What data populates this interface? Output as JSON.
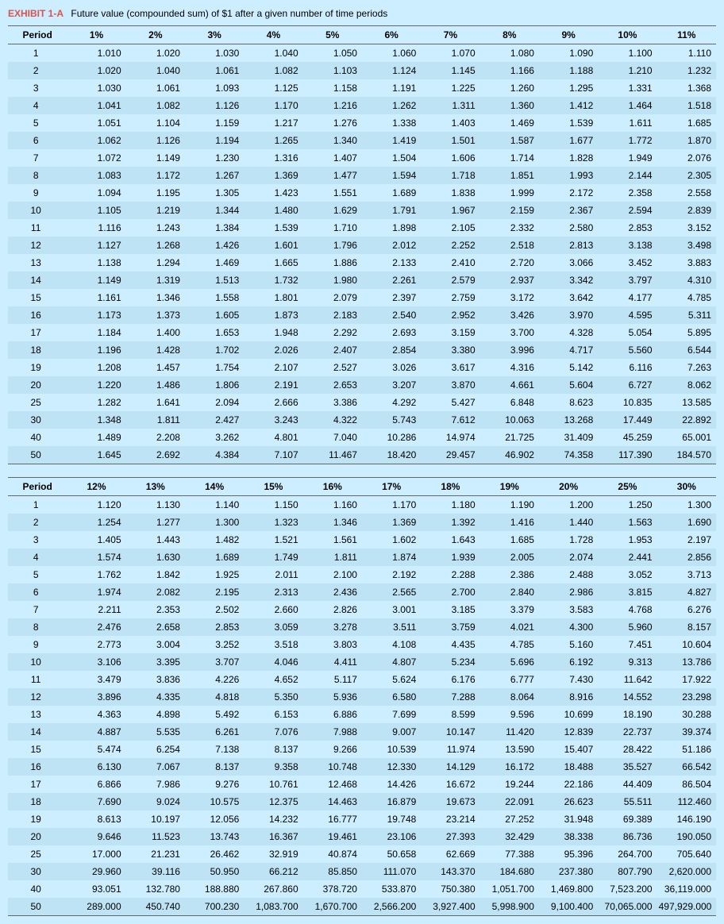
{
  "title": {
    "label": "EXHIBIT 1-A",
    "text": "Future value (compounded sum) of $1 after a given number of time periods"
  },
  "tableA": {
    "headers": [
      "Period",
      "1%",
      "2%",
      "3%",
      "4%",
      "5%",
      "6%",
      "7%",
      "8%",
      "9%",
      "10%",
      "11%"
    ],
    "rows": [
      [
        "1",
        "1.010",
        "1.020",
        "1.030",
        "1.040",
        "1.050",
        "1.060",
        "1.070",
        "1.080",
        "1.090",
        "1.100",
        "1.110"
      ],
      [
        "2",
        "1.020",
        "1.040",
        "1.061",
        "1.082",
        "1.103",
        "1.124",
        "1.145",
        "1.166",
        "1.188",
        "1.210",
        "1.232"
      ],
      [
        "3",
        "1.030",
        "1.061",
        "1.093",
        "1.125",
        "1.158",
        "1.191",
        "1.225",
        "1.260",
        "1.295",
        "1.331",
        "1.368"
      ],
      [
        "4",
        "1.041",
        "1.082",
        "1.126",
        "1.170",
        "1.216",
        "1.262",
        "1.311",
        "1.360",
        "1.412",
        "1.464",
        "1.518"
      ],
      [
        "5",
        "1.051",
        "1.104",
        "1.159",
        "1.217",
        "1.276",
        "1.338",
        "1.403",
        "1.469",
        "1.539",
        "1.611",
        "1.685"
      ],
      [
        "6",
        "1.062",
        "1.126",
        "1.194",
        "1.265",
        "1.340",
        "1.419",
        "1.501",
        "1.587",
        "1.677",
        "1.772",
        "1.870"
      ],
      [
        "7",
        "1.072",
        "1.149",
        "1.230",
        "1.316",
        "1.407",
        "1.504",
        "1.606",
        "1.714",
        "1.828",
        "1.949",
        "2.076"
      ],
      [
        "8",
        "1.083",
        "1.172",
        "1.267",
        "1.369",
        "1.477",
        "1.594",
        "1.718",
        "1.851",
        "1.993",
        "2.144",
        "2.305"
      ],
      [
        "9",
        "1.094",
        "1.195",
        "1.305",
        "1.423",
        "1.551",
        "1.689",
        "1.838",
        "1.999",
        "2.172",
        "2.358",
        "2.558"
      ],
      [
        "10",
        "1.105",
        "1.219",
        "1.344",
        "1.480",
        "1.629",
        "1.791",
        "1.967",
        "2.159",
        "2.367",
        "2.594",
        "2.839"
      ],
      [
        "11",
        "1.116",
        "1.243",
        "1.384",
        "1.539",
        "1.710",
        "1.898",
        "2.105",
        "2.332",
        "2.580",
        "2.853",
        "3.152"
      ],
      [
        "12",
        "1.127",
        "1.268",
        "1.426",
        "1.601",
        "1.796",
        "2.012",
        "2.252",
        "2.518",
        "2.813",
        "3.138",
        "3.498"
      ],
      [
        "13",
        "1.138",
        "1.294",
        "1.469",
        "1.665",
        "1.886",
        "2.133",
        "2.410",
        "2.720",
        "3.066",
        "3.452",
        "3.883"
      ],
      [
        "14",
        "1.149",
        "1.319",
        "1.513",
        "1.732",
        "1.980",
        "2.261",
        "2.579",
        "2.937",
        "3.342",
        "3.797",
        "4.310"
      ],
      [
        "15",
        "1.161",
        "1.346",
        "1.558",
        "1.801",
        "2.079",
        "2.397",
        "2.759",
        "3.172",
        "3.642",
        "4.177",
        "4.785"
      ],
      [
        "16",
        "1.173",
        "1.373",
        "1.605",
        "1.873",
        "2.183",
        "2.540",
        "2.952",
        "3.426",
        "3.970",
        "4.595",
        "5.311"
      ],
      [
        "17",
        "1.184",
        "1.400",
        "1.653",
        "1.948",
        "2.292",
        "2.693",
        "3.159",
        "3.700",
        "4.328",
        "5.054",
        "5.895"
      ],
      [
        "18",
        "1.196",
        "1.428",
        "1.702",
        "2.026",
        "2.407",
        "2.854",
        "3.380",
        "3.996",
        "4.717",
        "5.560",
        "6.544"
      ],
      [
        "19",
        "1.208",
        "1.457",
        "1.754",
        "2.107",
        "2.527",
        "3.026",
        "3.617",
        "4.316",
        "5.142",
        "6.116",
        "7.263"
      ],
      [
        "20",
        "1.220",
        "1.486",
        "1.806",
        "2.191",
        "2.653",
        "3.207",
        "3.870",
        "4.661",
        "5.604",
        "6.727",
        "8.062"
      ],
      [
        "25",
        "1.282",
        "1.641",
        "2.094",
        "2.666",
        "3.386",
        "4.292",
        "5.427",
        "6.848",
        "8.623",
        "10.835",
        "13.585"
      ],
      [
        "30",
        "1.348",
        "1.811",
        "2.427",
        "3.243",
        "4.322",
        "5.743",
        "7.612",
        "10.063",
        "13.268",
        "17.449",
        "22.892"
      ],
      [
        "40",
        "1.489",
        "2.208",
        "3.262",
        "4.801",
        "7.040",
        "10.286",
        "14.974",
        "21.725",
        "31.409",
        "45.259",
        "65.001"
      ],
      [
        "50",
        "1.645",
        "2.692",
        "4.384",
        "7.107",
        "11.467",
        "18.420",
        "29.457",
        "46.902",
        "74.358",
        "117.390",
        "184.570"
      ]
    ]
  },
  "tableB": {
    "headers": [
      "Period",
      "12%",
      "13%",
      "14%",
      "15%",
      "16%",
      "17%",
      "18%",
      "19%",
      "20%",
      "25%",
      "30%"
    ],
    "rows": [
      [
        "1",
        "1.120",
        "1.130",
        "1.140",
        "1.150",
        "1.160",
        "1.170",
        "1.180",
        "1.190",
        "1.200",
        "1.250",
        "1.300"
      ],
      [
        "2",
        "1.254",
        "1.277",
        "1.300",
        "1.323",
        "1.346",
        "1.369",
        "1.392",
        "1.416",
        "1.440",
        "1.563",
        "1.690"
      ],
      [
        "3",
        "1.405",
        "1.443",
        "1.482",
        "1.521",
        "1.561",
        "1.602",
        "1.643",
        "1.685",
        "1.728",
        "1.953",
        "2.197"
      ],
      [
        "4",
        "1.574",
        "1.630",
        "1.689",
        "1.749",
        "1.811",
        "1.874",
        "1.939",
        "2.005",
        "2.074",
        "2.441",
        "2.856"
      ],
      [
        "5",
        "1.762",
        "1.842",
        "1.925",
        "2.011",
        "2.100",
        "2.192",
        "2.288",
        "2.386",
        "2.488",
        "3.052",
        "3.713"
      ],
      [
        "6",
        "1.974",
        "2.082",
        "2.195",
        "2.313",
        "2.436",
        "2.565",
        "2.700",
        "2.840",
        "2.986",
        "3.815",
        "4.827"
      ],
      [
        "7",
        "2.211",
        "2.353",
        "2.502",
        "2.660",
        "2.826",
        "3.001",
        "3.185",
        "3.379",
        "3.583",
        "4.768",
        "6.276"
      ],
      [
        "8",
        "2.476",
        "2.658",
        "2.853",
        "3.059",
        "3.278",
        "3.511",
        "3.759",
        "4.021",
        "4.300",
        "5.960",
        "8.157"
      ],
      [
        "9",
        "2.773",
        "3.004",
        "3.252",
        "3.518",
        "3.803",
        "4.108",
        "4.435",
        "4.785",
        "5.160",
        "7.451",
        "10.604"
      ],
      [
        "10",
        "3.106",
        "3.395",
        "3.707",
        "4.046",
        "4.411",
        "4.807",
        "5.234",
        "5.696",
        "6.192",
        "9.313",
        "13.786"
      ],
      [
        "11",
        "3.479",
        "3.836",
        "4.226",
        "4.652",
        "5.117",
        "5.624",
        "6.176",
        "6.777",
        "7.430",
        "11.642",
        "17.922"
      ],
      [
        "12",
        "3.896",
        "4.335",
        "4.818",
        "5.350",
        "5.936",
        "6.580",
        "7.288",
        "8.064",
        "8.916",
        "14.552",
        "23.298"
      ],
      [
        "13",
        "4.363",
        "4.898",
        "5.492",
        "6.153",
        "6.886",
        "7.699",
        "8.599",
        "9.596",
        "10.699",
        "18.190",
        "30.288"
      ],
      [
        "14",
        "4.887",
        "5.535",
        "6.261",
        "7.076",
        "7.988",
        "9.007",
        "10.147",
        "11.420",
        "12.839",
        "22.737",
        "39.374"
      ],
      [
        "15",
        "5.474",
        "6.254",
        "7.138",
        "8.137",
        "9.266",
        "10.539",
        "11.974",
        "13.590",
        "15.407",
        "28.422",
        "51.186"
      ],
      [
        "16",
        "6.130",
        "7.067",
        "8.137",
        "9.358",
        "10.748",
        "12.330",
        "14.129",
        "16.172",
        "18.488",
        "35.527",
        "66.542"
      ],
      [
        "17",
        "6.866",
        "7.986",
        "9.276",
        "10.761",
        "12.468",
        "14.426",
        "16.672",
        "19.244",
        "22.186",
        "44.409",
        "86.504"
      ],
      [
        "18",
        "7.690",
        "9.024",
        "10.575",
        "12.375",
        "14.463",
        "16.879",
        "19.673",
        "22.091",
        "26.623",
        "55.511",
        "112.460"
      ],
      [
        "19",
        "8.613",
        "10.197",
        "12.056",
        "14.232",
        "16.777",
        "19.748",
        "23.214",
        "27.252",
        "31.948",
        "69.389",
        "146.190"
      ],
      [
        "20",
        "9.646",
        "11.523",
        "13.743",
        "16.367",
        "19.461",
        "23.106",
        "27.393",
        "32.429",
        "38.338",
        "86.736",
        "190.050"
      ],
      [
        "25",
        "17.000",
        "21.231",
        "26.462",
        "32.919",
        "40.874",
        "50.658",
        "62.669",
        "77.388",
        "95.396",
        "264.700",
        "705.640"
      ],
      [
        "30",
        "29.960",
        "39.116",
        "50.950",
        "66.212",
        "85.850",
        "111.070",
        "143.370",
        "184.680",
        "237.380",
        "807.790",
        "2,620.000"
      ],
      [
        "40",
        "93.051",
        "132.780",
        "188.880",
        "267.860",
        "378.720",
        "533.870",
        "750.380",
        "1,051.700",
        "1,469.800",
        "7,523.200",
        "36,119.000"
      ],
      [
        "50",
        "289.000",
        "450.740",
        "700.230",
        "1,083.700",
        "1,670.700",
        "2,566.200",
        "3,927.400",
        "5,998.900",
        "9,100.400",
        "70,065.000",
        "497,929.000"
      ]
    ]
  }
}
